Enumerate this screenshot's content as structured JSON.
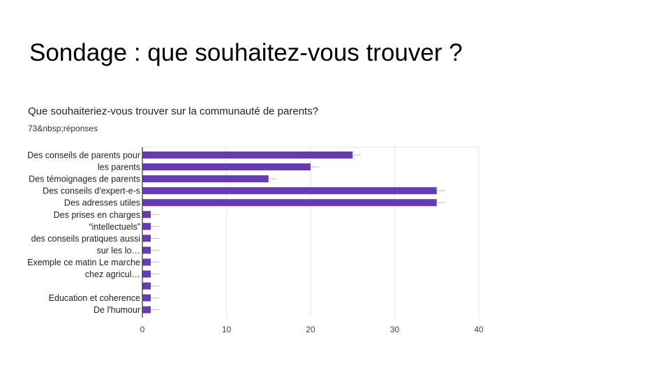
{
  "slide": {
    "title": "Sondage : que souhaitez-vous trouver ?"
  },
  "chart_data": {
    "type": "bar",
    "orientation": "horizontal",
    "title": "Que souhaiteriez-vous trouver sur la communauté de parents?",
    "subtitle": "73&nbsp;réponses",
    "bars": [
      {
        "label_lines": [
          "Des conseils de parents pour"
        ],
        "value": 25
      },
      {
        "label_lines": [
          "les parents"
        ],
        "value": 20
      },
      {
        "label_lines": [
          "Des témoignages de parents"
        ],
        "value": 15
      },
      {
        "label_lines": [
          "Des conseils d'expert-e-s"
        ],
        "value": 35
      },
      {
        "label_lines": [
          "Des adresses utiles"
        ],
        "value": 35
      },
      {
        "label_lines": [
          "Des prises en charges"
        ],
        "value": 1
      },
      {
        "label_lines": [
          "“intellectuels”"
        ],
        "value": 1
      },
      {
        "label_lines": [
          "des conseils pratiques aussi"
        ],
        "value": 1
      },
      {
        "label_lines": [
          "sur les lo…"
        ],
        "value": 1
      },
      {
        "label_lines": [
          "Exemple ce matin Le marche"
        ],
        "value": 1
      },
      {
        "label_lines": [
          "chez agricul…"
        ],
        "value": 1
      },
      {
        "label_lines": [],
        "value": 1
      },
      {
        "label_lines": [
          "Education et coherence"
        ],
        "value": 1
      },
      {
        "label_lines": [
          "De l'humour"
        ],
        "value": 1
      }
    ],
    "x_ticks": [
      0,
      10,
      20,
      30,
      40
    ],
    "xlim": [
      0,
      40
    ],
    "grid": true,
    "legend": "none",
    "colors": {
      "bar": "#673ab7",
      "grid": "#e6e6e6",
      "axis": "#333333",
      "tick_text": "#444444",
      "label_text": "#222222"
    }
  }
}
